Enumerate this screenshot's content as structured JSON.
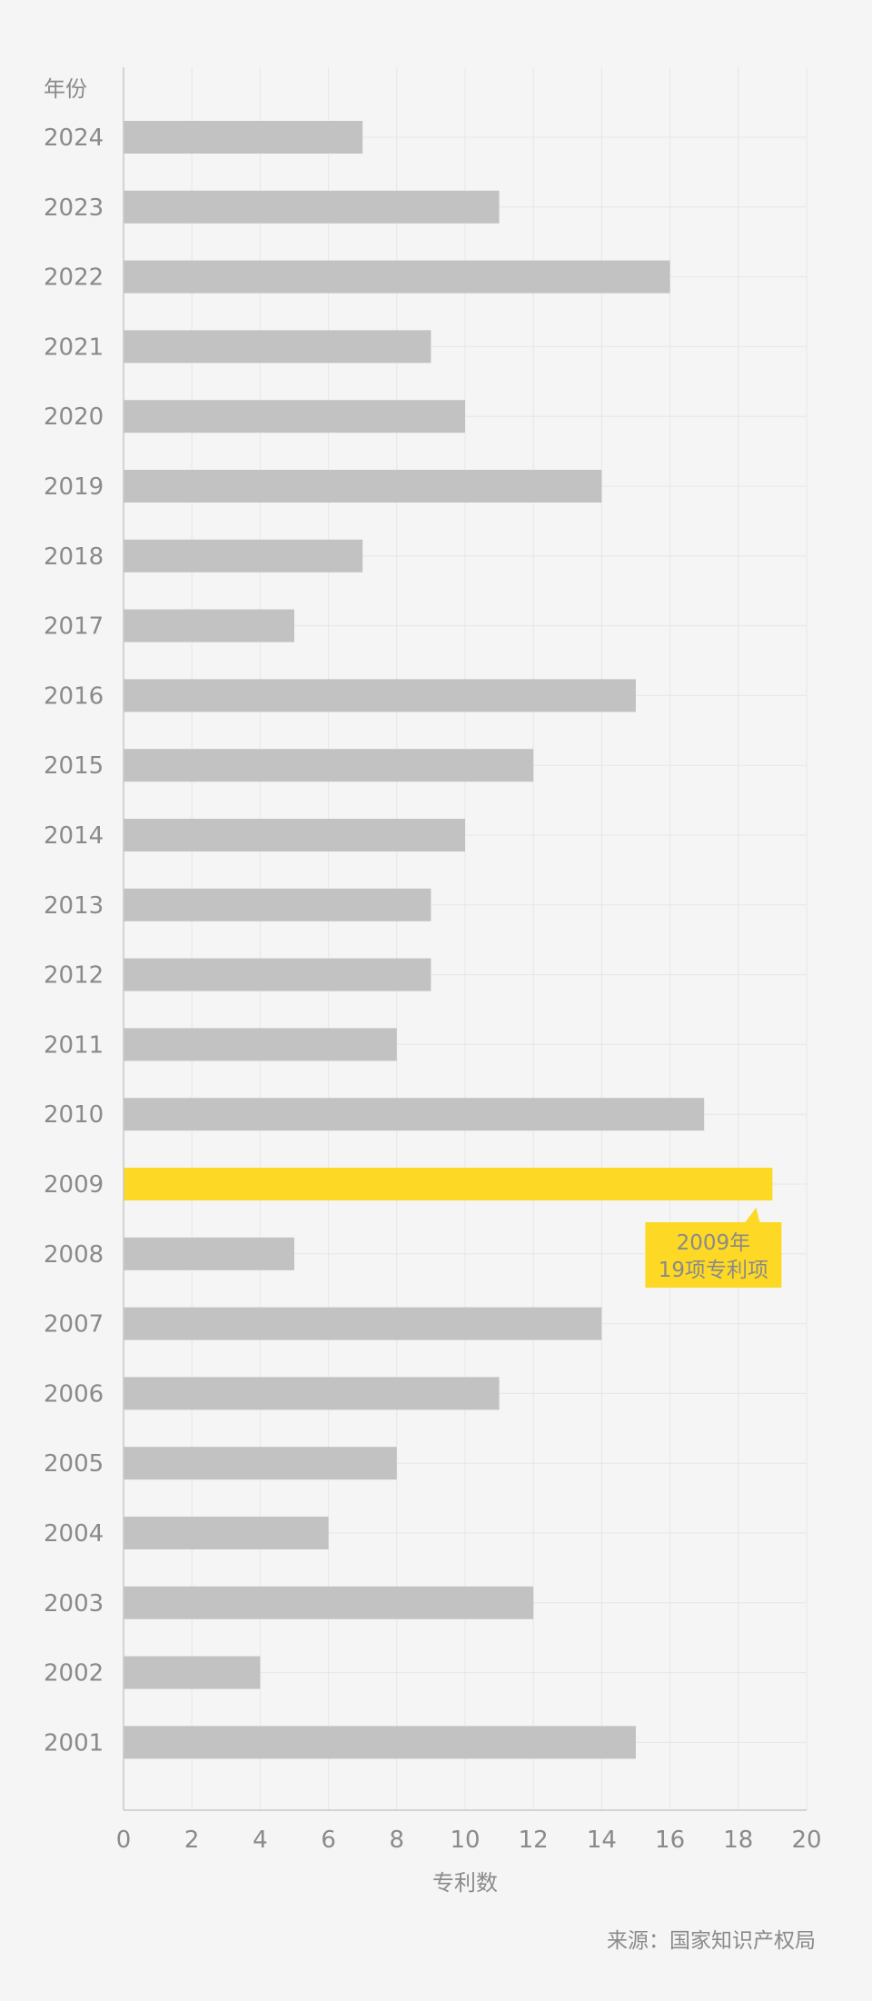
{
  "chart_data": {
    "type": "bar",
    "orientation": "horizontal",
    "categories": [
      "2024",
      "2023",
      "2022",
      "2021",
      "2020",
      "2019",
      "2018",
      "2017",
      "2016",
      "2015",
      "2014",
      "2013",
      "2012",
      "2011",
      "2010",
      "2009",
      "2008",
      "2007",
      "2006",
      "2005",
      "2004",
      "2003",
      "2002",
      "2001"
    ],
    "values": [
      7,
      11,
      16,
      9,
      10,
      14,
      7,
      5,
      15,
      12,
      10,
      9,
      9,
      8,
      17,
      19,
      5,
      14,
      11,
      8,
      6,
      12,
      4,
      15
    ],
    "title": "",
    "xlabel": "专利数",
    "ylabel": "年份",
    "xlim": [
      0,
      20
    ],
    "xticks": [
      0,
      2,
      4,
      6,
      8,
      10,
      12,
      14,
      16,
      18,
      20
    ],
    "grid": true,
    "highlight": {
      "category": "2009",
      "color": "#fdd825",
      "annotation_line1": "2009年",
      "annotation_line2": "19项专利项"
    },
    "colors": {
      "bar": "#c2c2c2",
      "highlight": "#fdd825",
      "grid": "#e6e6e6",
      "axis": "#c8c8c8",
      "text": "#8a8a8a",
      "background": "#f5f5f5"
    }
  },
  "source": "来源：国家知识产权局"
}
